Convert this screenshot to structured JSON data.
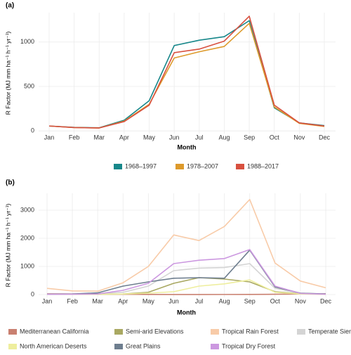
{
  "chart_data": [
    {
      "type": "line",
      "label": "(a)",
      "y_label": "R Factor (MJ mm ha⁻¹ h⁻¹ yr⁻¹)",
      "x_label": "Month",
      "categories": [
        "Jan",
        "Feb",
        "Mar",
        "Apr",
        "May",
        "Jun",
        "Jul",
        "Aug",
        "Sep",
        "Oct",
        "Nov",
        "Dec"
      ],
      "ylim": [
        -30,
        1330
      ],
      "yticks": [
        0,
        500,
        1000
      ],
      "grid": true,
      "legend": "bottom",
      "series": [
        {
          "name": "1968–1997",
          "color": "#17878a",
          "values": [
            55,
            40,
            35,
            120,
            340,
            960,
            1020,
            1060,
            1240,
            260,
            90,
            60
          ]
        },
        {
          "name": "1978–2007",
          "color": "#dd9a2b",
          "values": [
            55,
            38,
            33,
            110,
            300,
            820,
            890,
            950,
            1210,
            270,
            85,
            50
          ]
        },
        {
          "name": "1988–2017",
          "color": "#d8503f",
          "values": [
            55,
            38,
            33,
            105,
            290,
            880,
            920,
            1010,
            1290,
            290,
            90,
            55
          ]
        }
      ]
    },
    {
      "type": "line",
      "label": "(b)",
      "y_label": "R Factor (MJ mm ha⁻¹ h⁻¹ yr⁻¹)",
      "x_label": "Month",
      "categories": [
        "Jan",
        "Feb",
        "Mar",
        "Apr",
        "May",
        "Jun",
        "Jul",
        "Aug",
        "Sep",
        "Oct",
        "Nov",
        "Dec"
      ],
      "ylim": [
        -100,
        3600
      ],
      "yticks": [
        0,
        1000,
        2000,
        3000
      ],
      "grid": true,
      "legend": "bottom",
      "series": [
        {
          "name": "Mediterranean California",
          "color": "#c98070",
          "values": [
            30,
            20,
            15,
            10,
            5,
            2,
            2,
            3,
            5,
            10,
            20,
            30
          ]
        },
        {
          "name": "Semi-arid Elevations",
          "color": "#a9a862",
          "values": [
            10,
            10,
            10,
            20,
            80,
            400,
            600,
            550,
            450,
            100,
            30,
            15
          ]
        },
        {
          "name": "Tropical Rain Forest",
          "color": "#f8cba8",
          "values": [
            220,
            130,
            120,
            420,
            1000,
            2120,
            1920,
            2420,
            3380,
            1120,
            480,
            240
          ]
        },
        {
          "name": "Temperate Sierras",
          "color": "#d4d4d4",
          "values": [
            20,
            20,
            30,
            80,
            300,
            850,
            940,
            960,
            1100,
            220,
            50,
            20
          ]
        },
        {
          "name": "North American Deserts",
          "color": "#eeee9e",
          "values": [
            10,
            10,
            10,
            20,
            50,
            100,
            300,
            380,
            520,
            80,
            20,
            10
          ]
        },
        {
          "name": "Great Plains",
          "color": "#6e7e8f",
          "values": [
            10,
            20,
            60,
            300,
            450,
            580,
            600,
            580,
            1580,
            270,
            50,
            20
          ]
        },
        {
          "name": "Tropical Dry Forest",
          "color": "#cc98e0",
          "values": [
            10,
            10,
            20,
            150,
            400,
            1100,
            1220,
            1280,
            1600,
            300,
            40,
            10
          ]
        }
      ]
    }
  ]
}
